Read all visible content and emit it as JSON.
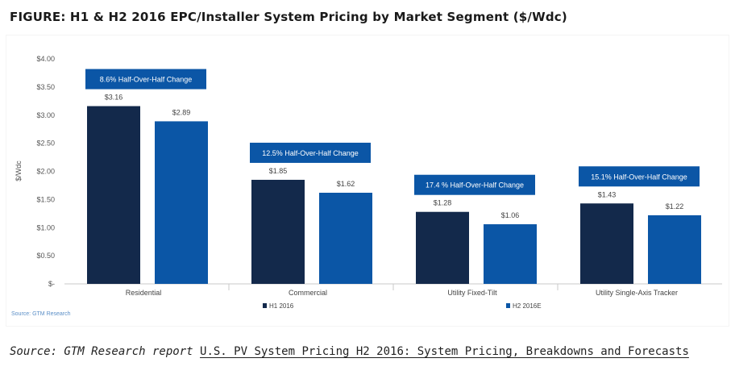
{
  "figure_title": "FIGURE: H1 & H2 2016 EPC/Installer System Pricing by Market Segment ($/Wdc)",
  "source_small": "Source: GTM Research",
  "source_line": {
    "lead": "Source: GTM Research report ",
    "link": "U.S. PV System Pricing H2 2016: System Pricing, Breakdowns and Forecasts"
  },
  "colors": {
    "h1": "#13294b",
    "h2": "#0b56a6",
    "callout": "#0b56a6",
    "axis": "#c8c8c8"
  },
  "chart_data": {
    "type": "bar",
    "ylabel": "$/Wdc",
    "ylim": [
      0,
      4
    ],
    "yticks": [
      0,
      0.5,
      1,
      1.5,
      2,
      2.5,
      3,
      3.5,
      4
    ],
    "ytick_labels": [
      "$-",
      "$0.50",
      "$1.00",
      "$1.50",
      "$2.00",
      "$2.50",
      "$3.00",
      "$3.50",
      "$4.00"
    ],
    "categories": [
      "Residential",
      "Commercial",
      "Utility Fixed-Tilt",
      "Utility Single-Axis Tracker"
    ],
    "series": [
      {
        "name": "H1 2016",
        "values": [
          3.16,
          1.85,
          1.28,
          1.43
        ],
        "labels": [
          "$3.16",
          "$1.85",
          "$1.28",
          "$1.43"
        ]
      },
      {
        "name": "H2 2016E",
        "values": [
          2.89,
          1.62,
          1.06,
          1.22
        ],
        "labels": [
          "$2.89",
          "$1.62",
          "$1.06",
          "$1.22"
        ]
      }
    ],
    "annotations": [
      "8.6% Half-Over-Half Change",
      "12.5% Half-Over-Half Change",
      "17.4 % Half-Over-Half Change",
      "15.1% Half-Over-Half Change"
    ],
    "legend_position": "bottom",
    "grid": false
  }
}
